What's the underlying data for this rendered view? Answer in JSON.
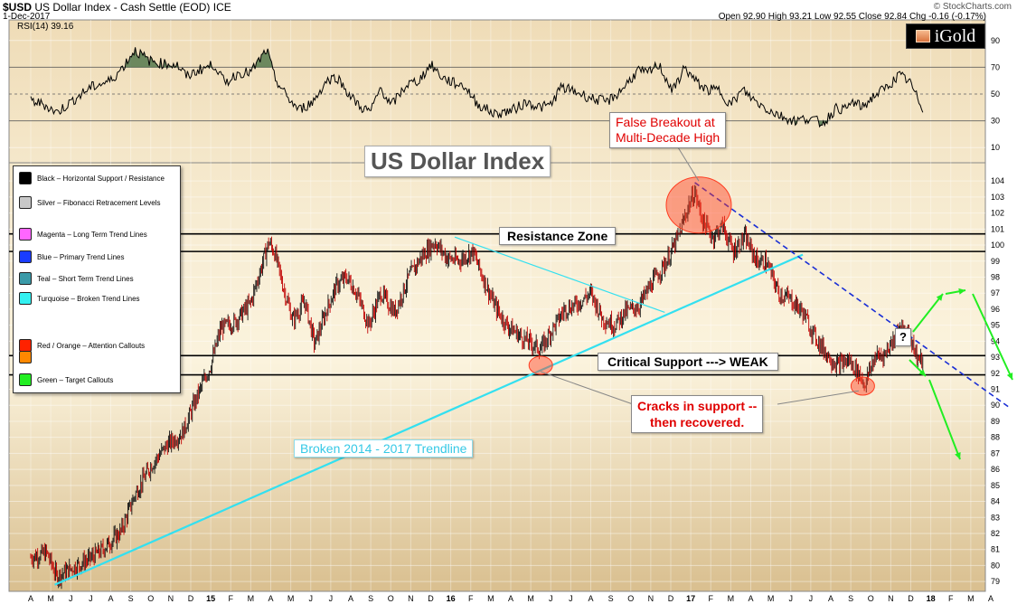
{
  "header": {
    "symbol": "$USD",
    "description": "US Dollar Index - Cash Settle (EOD)",
    "exchange": "ICE",
    "date": "1-Dec-2017",
    "ohlc": "Open 92.90  High 93.21  Low 92.55  Close 92.84  Chg -0.16 (-0.17%)",
    "watermark": "© StockCharts.com",
    "logo": "iGold"
  },
  "rsi": {
    "label": "RSI(14) 39.16",
    "value": 39.16,
    "ticks": [
      "90",
      "70",
      "50",
      "30",
      "10"
    ]
  },
  "legend": [
    {
      "label": "Black – Horizontal Support / Resistance",
      "color": "#000000"
    },
    {
      "label": "Silver – Fibonacci Retracement Levels",
      "color": "#c8c8c8"
    },
    {
      "label": "Magenta – Long Term Trend Lines",
      "color": "#ff66ff"
    },
    {
      "label": "Blue – Primary Trend Lines",
      "color": "#1a3cff"
    },
    {
      "label": "Teal – Short Term Trend Lines",
      "color": "#3a9aa8"
    },
    {
      "label": "Turquoise – Broken Trend Lines",
      "color": "#33f0f0"
    },
    {
      "label": "Red / Orange – Attention Callouts",
      "color": "#ff2200"
    },
    {
      "label": "Red / Orange – Attention Callouts (orange)",
      "color": "#ff8800"
    },
    {
      "label": "Green – Target Callouts",
      "color": "#22ee22"
    }
  ],
  "annotations": {
    "title": "US Dollar Index",
    "false_breakout_line1": "False Breakout at",
    "false_breakout_line2": "Multi-Decade High",
    "resistance": "Resistance Zone",
    "critical_support": "Critical Support ---> WEAK",
    "cracks_line1": "Cracks in support --",
    "cracks_line2": "then recovered.",
    "broken_trendline": "Broken 2014 - 2017 Trendline",
    "question": "?"
  },
  "chart_data": {
    "type": "candlestick",
    "x_labels": [
      "A",
      "M",
      "J",
      "J",
      "A",
      "S",
      "O",
      "N",
      "D",
      "15",
      "F",
      "M",
      "A",
      "M",
      "J",
      "J",
      "A",
      "S",
      "O",
      "N",
      "D",
      "16",
      "F",
      "M",
      "A",
      "M",
      "J",
      "J",
      "A",
      "S",
      "O",
      "N",
      "D",
      "17",
      "F",
      "M",
      "A",
      "M",
      "J",
      "J",
      "A",
      "S",
      "O",
      "N",
      "D",
      "18",
      "F",
      "M",
      "A"
    ],
    "y_ticks": [
      104,
      103,
      102,
      101,
      100,
      99,
      98,
      97,
      96,
      95,
      94,
      93,
      92,
      91,
      90,
      89,
      88,
      87,
      86,
      85,
      84,
      83,
      82,
      81,
      80,
      79
    ],
    "ylim": [
      78.5,
      104.8
    ],
    "price_path": [
      [
        0,
        80.5
      ],
      [
        0.8,
        80.8
      ],
      [
        1.3,
        79.3
      ],
      [
        2,
        79.8
      ],
      [
        2.8,
        80.3
      ],
      [
        3.5,
        80.9
      ],
      [
        4.5,
        82.1
      ],
      [
        5.2,
        84.4
      ],
      [
        6,
        86.2
      ],
      [
        6.8,
        87.5
      ],
      [
        7.6,
        88.3
      ],
      [
        8.3,
        90.5
      ],
      [
        9,
        92.5
      ],
      [
        9.5,
        94.8
      ],
      [
        10.2,
        95.2
      ],
      [
        11,
        96.4
      ],
      [
        11.9,
        100.2
      ],
      [
        12.2,
        99.5
      ],
      [
        12.6,
        97.5
      ],
      [
        13.1,
        95.3
      ],
      [
        13.7,
        96.5
      ],
      [
        14.2,
        93.8
      ],
      [
        14.8,
        96.0
      ],
      [
        15.3,
        97.5
      ],
      [
        15.8,
        98.0
      ],
      [
        16.3,
        97.0
      ],
      [
        16.9,
        95.0
      ],
      [
        17.5,
        97.0
      ],
      [
        18.2,
        95.8
      ],
      [
        18.9,
        98.0
      ],
      [
        19.5,
        99.2
      ],
      [
        20.2,
        100.2
      ],
      [
        20.8,
        99.2
      ],
      [
        21.4,
        99.0
      ],
      [
        22.1,
        99.6
      ],
      [
        22.6,
        98.0
      ],
      [
        23.2,
        96.2
      ],
      [
        23.8,
        95.0
      ],
      [
        24.6,
        94.2
      ],
      [
        25.5,
        93.5
      ],
      [
        26.1,
        94.8
      ],
      [
        26.7,
        96.0
      ],
      [
        27.3,
        96.3
      ],
      [
        28.0,
        97.0
      ],
      [
        28.6,
        95.4
      ],
      [
        29.2,
        95.0
      ],
      [
        29.7,
        95.8
      ],
      [
        30.4,
        96.2
      ],
      [
        31.0,
        97.5
      ],
      [
        31.8,
        99.0
      ],
      [
        32.4,
        100.6
      ],
      [
        32.9,
        102.5
      ],
      [
        33.2,
        103.3
      ],
      [
        33.6,
        101.5
      ],
      [
        34.1,
        100.5
      ],
      [
        34.6,
        101.2
      ],
      [
        35.1,
        99.6
      ],
      [
        35.7,
        100.5
      ],
      [
        36.3,
        99.0
      ],
      [
        36.8,
        98.9
      ],
      [
        37.4,
        97.0
      ],
      [
        38.0,
        96.6
      ],
      [
        38.6,
        95.8
      ],
      [
        39.2,
        94.3
      ],
      [
        39.8,
        93.2
      ],
      [
        40.3,
        92.5
      ],
      [
        40.9,
        92.8
      ],
      [
        41.4,
        92.0
      ],
      [
        41.7,
        91.3
      ],
      [
        42.2,
        93.0
      ],
      [
        42.7,
        93.2
      ],
      [
        43.3,
        94.5
      ],
      [
        43.9,
        94.6
      ],
      [
        44.3,
        93.0
      ],
      [
        44.6,
        92.7
      ]
    ],
    "rsi_path": [
      [
        0,
        45
      ],
      [
        0.7,
        42
      ],
      [
        1.3,
        36
      ],
      [
        2.0,
        44
      ],
      [
        3.0,
        55
      ],
      [
        4.0,
        60
      ],
      [
        4.6,
        70
      ],
      [
        5.2,
        83
      ],
      [
        5.9,
        75
      ],
      [
        6.5,
        73
      ],
      [
        7.3,
        72
      ],
      [
        7.8,
        63
      ],
      [
        8.4,
        68
      ],
      [
        9.2,
        72
      ],
      [
        9.7,
        58
      ],
      [
        10.4,
        66
      ],
      [
        11.0,
        66
      ],
      [
        11.8,
        83
      ],
      [
        12.2,
        62
      ],
      [
        12.8,
        48
      ],
      [
        13.4,
        38
      ],
      [
        14.1,
        44
      ],
      [
        14.8,
        60
      ],
      [
        15.3,
        63
      ],
      [
        16.0,
        48
      ],
      [
        16.5,
        40
      ],
      [
        17.0,
        37
      ],
      [
        17.5,
        55
      ],
      [
        18.0,
        41
      ],
      [
        18.8,
        57
      ],
      [
        19.4,
        60
      ],
      [
        20.0,
        72
      ],
      [
        20.6,
        62
      ],
      [
        21.2,
        58
      ],
      [
        21.7,
        56
      ],
      [
        22.3,
        43
      ],
      [
        23.2,
        35
      ],
      [
        24.1,
        38
      ],
      [
        24.8,
        44
      ],
      [
        25.5,
        40
      ],
      [
        26.0,
        42
      ],
      [
        26.5,
        55
      ],
      [
        27.2,
        52
      ],
      [
        28.0,
        47
      ],
      [
        28.8,
        44
      ],
      [
        29.4,
        51
      ],
      [
        30.4,
        68
      ],
      [
        30.8,
        65
      ],
      [
        31.4,
        72
      ],
      [
        32.1,
        52
      ],
      [
        32.7,
        70
      ],
      [
        33.2,
        60
      ],
      [
        33.8,
        53
      ],
      [
        34.4,
        53
      ],
      [
        35.0,
        42
      ],
      [
        35.6,
        53
      ],
      [
        36.2,
        45
      ],
      [
        36.9,
        38
      ],
      [
        37.6,
        33
      ],
      [
        38.2,
        30
      ],
      [
        38.9,
        32
      ],
      [
        39.6,
        28
      ],
      [
        40.3,
        40
      ],
      [
        40.7,
        38
      ],
      [
        41.1,
        44
      ],
      [
        41.6,
        40
      ],
      [
        42.1,
        48
      ],
      [
        42.8,
        55
      ],
      [
        43.4,
        64
      ],
      [
        43.9,
        60
      ],
      [
        44.3,
        48
      ],
      [
        44.6,
        39
      ]
    ],
    "horizontal_lines": [
      100.7,
      99.6,
      93.1,
      91.9
    ],
    "series": []
  }
}
